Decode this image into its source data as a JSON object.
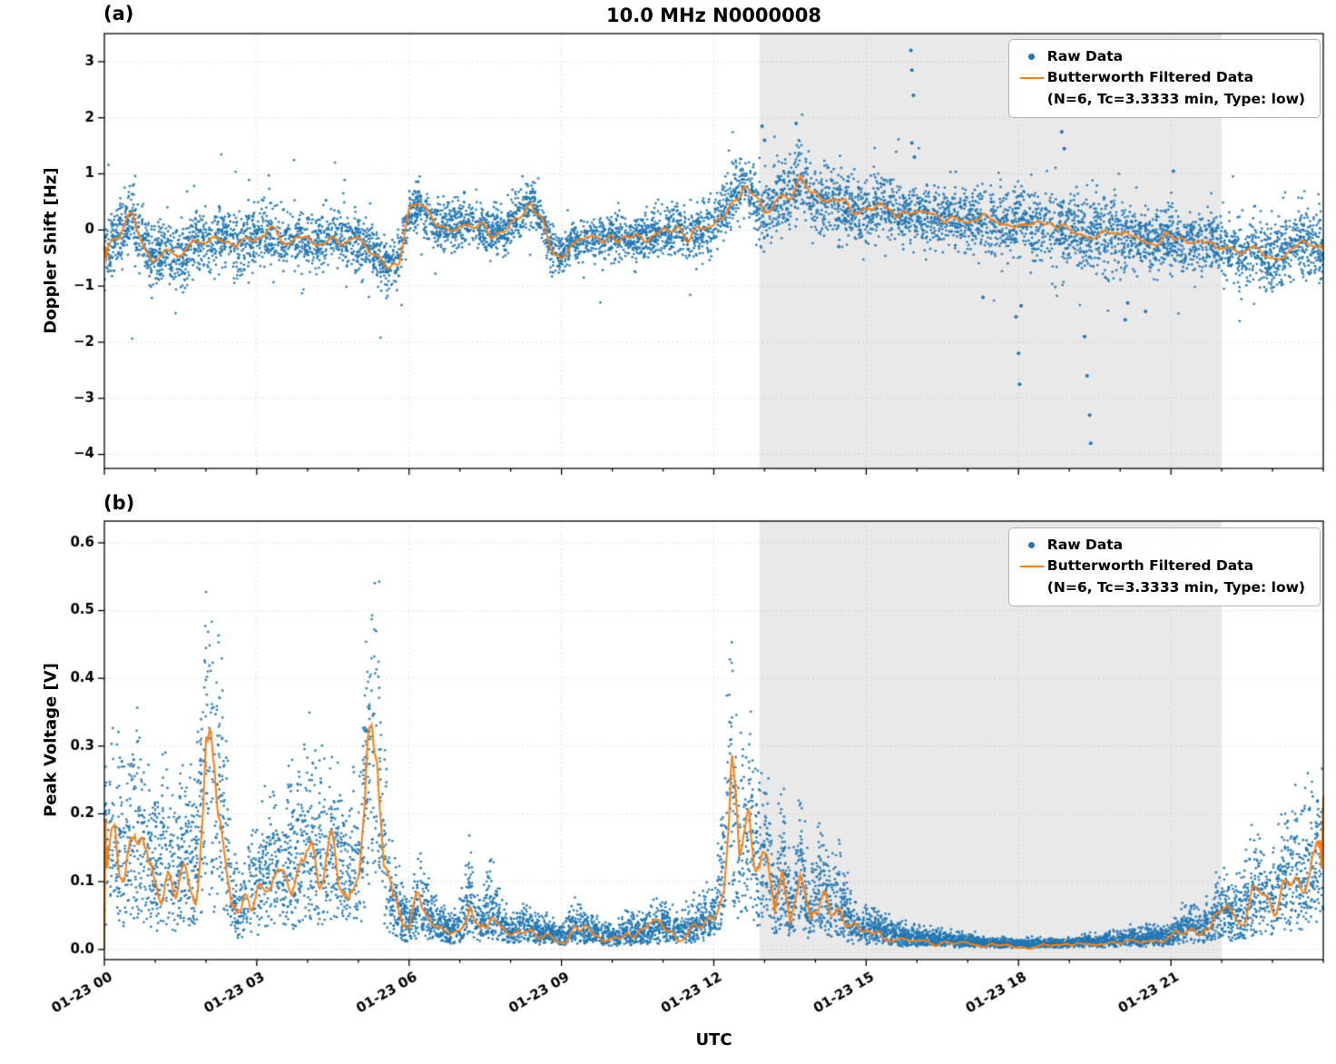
{
  "figure": {
    "title": "10.0 MHz N0000008",
    "xlabel": "UTC",
    "panel_a_label": "(a)",
    "panel_b_label": "(b)",
    "colors": {
      "raw": "#1f77b4",
      "filtered": "#ff7f0e",
      "shade": "#e9e9e9",
      "grid": "#bdbdbd",
      "axis": "#000000"
    },
    "legend": {
      "raw_label": "Raw Data",
      "filtered_label": "Butterworth Filtered Data",
      "filtered_sublabel": "(N=6, Tc=3.3333 min, Type: low)"
    }
  },
  "chart_data": [
    {
      "panel": "a",
      "type": "scatter",
      "title": "10.0 MHz N0000008",
      "ylabel": "Doppler Shift [Hz]",
      "ylim": [
        -4.25,
        3.5
      ],
      "y_tick_values": [
        3,
        2,
        1,
        0,
        -1,
        -2,
        -3,
        -4
      ],
      "y_tick_labels": [
        "3",
        "2",
        "1",
        "0",
        "−1",
        "−2",
        "−3",
        "−4"
      ],
      "x_range_hours": [
        0,
        24
      ],
      "x_tick_hours": [
        0,
        3,
        6,
        9,
        12,
        15,
        18,
        21
      ],
      "x_tick_labels": [
        "01-23 00",
        "01-23 03",
        "01-23 06",
        "01-23 09",
        "01-23 12",
        "01-23 15",
        "01-23 18",
        "01-23 21"
      ],
      "show_x_tick_labels": false,
      "grid": true,
      "legend_position": "upper right",
      "shaded_region_hours": [
        12.9,
        22.0
      ],
      "filtered_line": {
        "name": "Butterworth Filtered Data",
        "params": "(N=6, Tc=3.3333 min, Type: low)",
        "color": "#ff7f0e",
        "line_jitter": 0.07,
        "x_hours": [
          0,
          0.25,
          0.55,
          0.8,
          0.95,
          1.2,
          1.5,
          1.8,
          2.05,
          2.3,
          2.6,
          2.9,
          3.2,
          3.5,
          3.8,
          4.1,
          4.4,
          4.7,
          5.0,
          5.3,
          5.6,
          5.8,
          6.0,
          6.2,
          6.5,
          6.8,
          7.0,
          7.3,
          7.6,
          7.9,
          8.2,
          8.4,
          8.6,
          8.8,
          9.0,
          9.2,
          9.5,
          9.8,
          10.1,
          10.5,
          10.9,
          11.3,
          11.6,
          12.0,
          12.2,
          12.4,
          12.6,
          12.8,
          13.0,
          13.2,
          13.5,
          13.7,
          13.9,
          14.1,
          14.4,
          14.7,
          15.0,
          15.3,
          15.6,
          16.0,
          16.3,
          16.6,
          17.0,
          17.3,
          17.6,
          18.0,
          18.3,
          18.6,
          19.0,
          19.3,
          19.6,
          20.0,
          20.3,
          20.6,
          21.0,
          21.3,
          21.6,
          22.0,
          22.3,
          22.6,
          23.0,
          23.3,
          23.6,
          24.0
        ],
        "y": [
          -0.35,
          -0.15,
          0.3,
          -0.3,
          -0.55,
          -0.35,
          -0.5,
          -0.2,
          -0.25,
          -0.1,
          -0.3,
          -0.15,
          -0.05,
          -0.2,
          -0.1,
          -0.25,
          -0.15,
          -0.2,
          -0.25,
          -0.4,
          -0.65,
          -0.5,
          0.35,
          0.45,
          0.1,
          0.05,
          0.15,
          0.1,
          -0.05,
          0.0,
          0.3,
          0.55,
          0.2,
          -0.35,
          -0.5,
          -0.2,
          -0.1,
          -0.15,
          -0.15,
          -0.15,
          -0.05,
          0.05,
          -0.15,
          0.1,
          0.35,
          0.6,
          0.85,
          0.55,
          0.25,
          0.45,
          0.6,
          0.95,
          0.65,
          0.55,
          0.5,
          0.35,
          0.3,
          0.45,
          0.25,
          0.3,
          0.2,
          0.25,
          0.15,
          0.2,
          0.1,
          0.15,
          0.05,
          0.1,
          0.0,
          -0.1,
          -0.05,
          -0.15,
          -0.1,
          -0.2,
          -0.15,
          -0.25,
          -0.2,
          -0.3,
          -0.45,
          -0.35,
          -0.55,
          -0.35,
          -0.2,
          -0.25
        ]
      },
      "raw": {
        "name": "Raw Data",
        "color": "#1f77b4",
        "model": "gaussian-band",
        "n_points": 7500,
        "tail_fraction": 0.06,
        "tail_scale": 2.1,
        "spread_x_hours": [
          0,
          2,
          4,
          6,
          8,
          10,
          12,
          12.9,
          13.5,
          14.5,
          15.5,
          16.5,
          17.5,
          18.5,
          19.5,
          20.5,
          21.5,
          22.5,
          23.5,
          24
        ],
        "spread": [
          0.3,
          0.27,
          0.25,
          0.22,
          0.2,
          0.18,
          0.24,
          0.28,
          0.32,
          0.3,
          0.27,
          0.26,
          0.28,
          0.3,
          0.33,
          0.3,
          0.27,
          0.28,
          0.3,
          0.3
        ],
        "outliers": [
          [
            12.95,
            1.85
          ],
          [
            13.0,
            1.6
          ],
          [
            13.62,
            1.9
          ],
          [
            15.88,
            3.2
          ],
          [
            15.9,
            2.85
          ],
          [
            15.93,
            2.4
          ],
          [
            15.9,
            1.55
          ],
          [
            15.95,
            1.3
          ],
          [
            17.3,
            -1.2
          ],
          [
            17.95,
            -1.55
          ],
          [
            18.0,
            -2.2
          ],
          [
            18.02,
            -2.75
          ],
          [
            18.05,
            -1.35
          ],
          [
            18.85,
            1.75
          ],
          [
            18.9,
            1.45
          ],
          [
            19.3,
            -1.9
          ],
          [
            19.35,
            -2.6
          ],
          [
            19.4,
            -3.3
          ],
          [
            19.42,
            -3.8
          ],
          [
            20.1,
            -1.6
          ],
          [
            20.15,
            -1.3
          ],
          [
            20.5,
            -1.45
          ],
          [
            21.05,
            1.05
          ]
        ]
      }
    },
    {
      "panel": "b",
      "type": "scatter",
      "ylabel": "Peak Voltage [V]",
      "ylim": [
        -0.015,
        0.632
      ],
      "y_tick_values": [
        0.0,
        0.1,
        0.2,
        0.3,
        0.4,
        0.5,
        0.6
      ],
      "y_tick_labels": [
        "0.0",
        "0.1",
        "0.2",
        "0.3",
        "0.4",
        "0.5",
        "0.6"
      ],
      "x_range_hours": [
        0,
        24
      ],
      "x_tick_hours": [
        0,
        3,
        6,
        9,
        12,
        15,
        18,
        21
      ],
      "x_tick_labels": [
        "01-23 00",
        "01-23 03",
        "01-23 06",
        "01-23 09",
        "01-23 12",
        "01-23 15",
        "01-23 18",
        "01-23 21"
      ],
      "show_x_tick_labels": true,
      "grid": true,
      "legend_position": "upper right",
      "shaded_region_hours": [
        12.9,
        22.0
      ],
      "filtered_line": {
        "name": "Butterworth Filtered Data",
        "params": "(N=6, Tc=3.3333 min, Type: low)",
        "color": "#ff7f0e",
        "line_jitter_rel": 0.25,
        "x_hours": [
          0,
          0.2,
          0.4,
          0.6,
          0.8,
          1.0,
          1.2,
          1.4,
          1.6,
          1.8,
          2.0,
          2.15,
          2.3,
          2.5,
          2.7,
          3.0,
          3.2,
          3.5,
          3.8,
          4.0,
          4.2,
          4.5,
          4.8,
          5.0,
          5.2,
          5.35,
          5.5,
          5.7,
          6.0,
          6.2,
          6.4,
          6.6,
          6.8,
          7.0,
          7.2,
          7.4,
          7.6,
          7.8,
          8.0,
          8.3,
          8.6,
          9.0,
          9.3,
          9.6,
          10.0,
          10.3,
          10.6,
          11.0,
          11.3,
          11.6,
          12.0,
          12.2,
          12.35,
          12.5,
          12.7,
          12.9,
          13.05,
          13.2,
          13.35,
          13.5,
          13.7,
          13.9,
          14.1,
          14.3,
          14.5,
          14.7,
          15.0,
          15.3,
          15.6,
          16.0,
          16.5,
          17.0,
          17.5,
          18.0,
          18.5,
          19.0,
          19.5,
          20.0,
          20.5,
          21.0,
          21.3,
          21.6,
          22.0,
          22.3,
          22.6,
          23.0,
          23.3,
          23.6,
          24.0
        ],
        "y": [
          0.12,
          0.16,
          0.1,
          0.17,
          0.12,
          0.1,
          0.14,
          0.09,
          0.13,
          0.1,
          0.29,
          0.22,
          0.22,
          0.06,
          0.05,
          0.08,
          0.1,
          0.09,
          0.13,
          0.15,
          0.11,
          0.13,
          0.1,
          0.12,
          0.24,
          0.33,
          0.12,
          0.06,
          0.03,
          0.06,
          0.04,
          0.03,
          0.02,
          0.03,
          0.07,
          0.03,
          0.06,
          0.03,
          0.02,
          0.03,
          0.02,
          0.015,
          0.03,
          0.02,
          0.015,
          0.02,
          0.02,
          0.03,
          0.02,
          0.03,
          0.04,
          0.1,
          0.26,
          0.12,
          0.16,
          0.1,
          0.13,
          0.05,
          0.12,
          0.04,
          0.1,
          0.04,
          0.09,
          0.05,
          0.06,
          0.03,
          0.025,
          0.02,
          0.015,
          0.012,
          0.01,
          0.008,
          0.006,
          0.005,
          0.005,
          0.006,
          0.008,
          0.01,
          0.012,
          0.015,
          0.03,
          0.02,
          0.05,
          0.04,
          0.07,
          0.06,
          0.1,
          0.09,
          0.14
        ]
      },
      "raw": {
        "name": "Raw Data",
        "color": "#1f77b4",
        "model": "multiplicative-band",
        "n_points": 8000,
        "mult_base": 0.25,
        "mult_span": 1.25,
        "tail": 1.5,
        "noise_floor": 0.003,
        "outliers": []
      }
    }
  ]
}
